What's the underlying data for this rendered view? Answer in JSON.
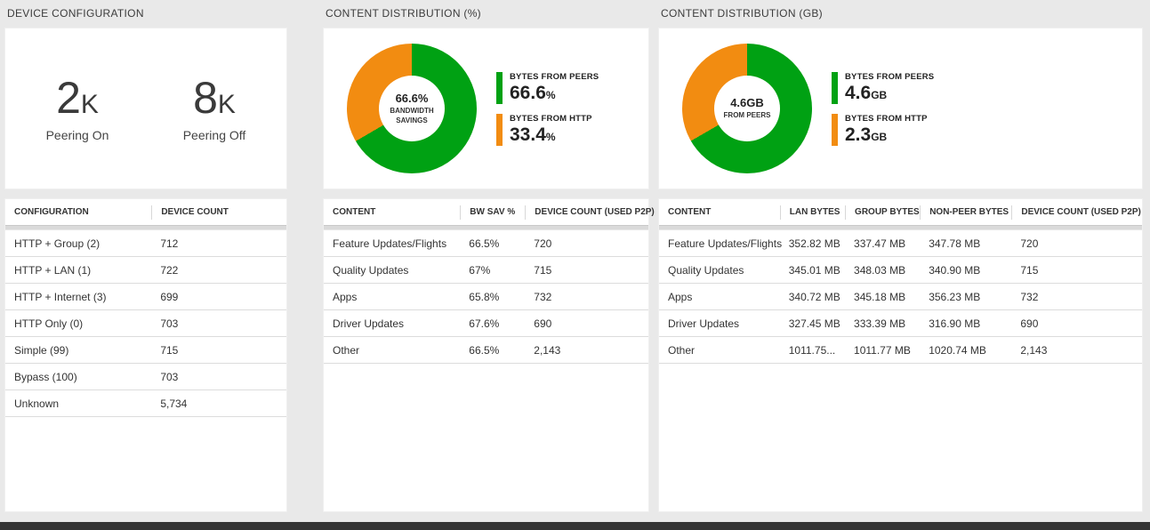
{
  "colors": {
    "green": "#00a113",
    "orange": "#f28c11",
    "background": "#e9e9e9",
    "bottom_bar": "#353535"
  },
  "panels": {
    "device_config": {
      "title": "DEVICE CONFIGURATION",
      "stats": [
        {
          "value": "2",
          "unit": "K",
          "label": "Peering On"
        },
        {
          "value": "8",
          "unit": "K",
          "label": "Peering Off"
        }
      ],
      "table": {
        "columns": [
          "CONFIGURATION",
          "DEVICE COUNT"
        ],
        "rows": [
          [
            "HTTP + Group (2)",
            "712"
          ],
          [
            "HTTP + LAN (1)",
            "722"
          ],
          [
            "HTTP + Internet (3)",
            "699"
          ],
          [
            "HTTP Only (0)",
            "703"
          ],
          [
            "Simple (99)",
            "715"
          ],
          [
            "Bypass (100)",
            "703"
          ],
          [
            "Unknown",
            "5,734"
          ]
        ]
      }
    },
    "dist_pct": {
      "title": "CONTENT DISTRIBUTION (%)",
      "chart": {
        "center_value": "66.6%",
        "center_label": "BANDWIDTH SAVINGS",
        "segments": [
          {
            "name": "BYTES FROM PEERS",
            "value": 66.6,
            "display": "66.6",
            "suffix": "%",
            "color": "#00a113"
          },
          {
            "name": "BYTES FROM HTTP",
            "value": 33.4,
            "display": "33.4",
            "suffix": "%",
            "color": "#f28c11"
          }
        ]
      },
      "table": {
        "columns": [
          "CONTENT",
          "BW SAV %",
          "DEVICE COUNT (USED P2P)"
        ],
        "rows": [
          [
            "Feature Updates/Flights",
            "66.5%",
            "720"
          ],
          [
            "Quality Updates",
            "67%",
            "715"
          ],
          [
            "Apps",
            "65.8%",
            "732"
          ],
          [
            "Driver Updates",
            "67.6%",
            "690"
          ],
          [
            "Other",
            "66.5%",
            "2,143"
          ]
        ]
      }
    },
    "dist_gb": {
      "title": "CONTENT DISTRIBUTION (GB)",
      "chart": {
        "center_value": "4.6GB",
        "center_label": "FROM PEERS",
        "segments": [
          {
            "name": "BYTES FROM PEERS",
            "value": 4.6,
            "display": "4.6",
            "suffix": "GB",
            "color": "#00a113"
          },
          {
            "name": "BYTES FROM HTTP",
            "value": 2.3,
            "display": "2.3",
            "suffix": "GB",
            "color": "#f28c11"
          }
        ]
      },
      "table": {
        "columns": [
          "CONTENT",
          "LAN BYTES",
          "GROUP BYTES",
          "NON-PEER BYTES",
          "DEVICE COUNT (USED P2P)"
        ],
        "rows": [
          [
            "Feature Updates/Flights",
            "352.82 MB",
            "337.47 MB",
            "347.78 MB",
            "720"
          ],
          [
            "Quality Updates",
            "345.01 MB",
            "348.03 MB",
            "340.90 MB",
            "715"
          ],
          [
            "Apps",
            "340.72 MB",
            "345.18 MB",
            "356.23 MB",
            "732"
          ],
          [
            "Driver Updates",
            "327.45 MB",
            "333.39 MB",
            "316.90 MB",
            "690"
          ],
          [
            "Other",
            "1011.75...",
            "1011.77 MB",
            "1020.74 MB",
            "2,143"
          ]
        ]
      }
    }
  },
  "chart_data": [
    {
      "type": "pie",
      "title": "CONTENT DISTRIBUTION (%)",
      "labels": [
        "BYTES FROM PEERS",
        "BYTES FROM HTTP"
      ],
      "values": [
        66.6,
        33.4
      ],
      "units": "%",
      "center_text": "66.6% BANDWIDTH SAVINGS",
      "colors": [
        "#00a113",
        "#f28c11"
      ],
      "legend_position": "right"
    },
    {
      "type": "pie",
      "title": "CONTENT DISTRIBUTION (GB)",
      "labels": [
        "BYTES FROM PEERS",
        "BYTES FROM HTTP"
      ],
      "values": [
        4.6,
        2.3
      ],
      "units": "GB",
      "center_text": "4.6GB FROM PEERS",
      "colors": [
        "#00a113",
        "#f28c11"
      ],
      "legend_position": "right"
    }
  ]
}
